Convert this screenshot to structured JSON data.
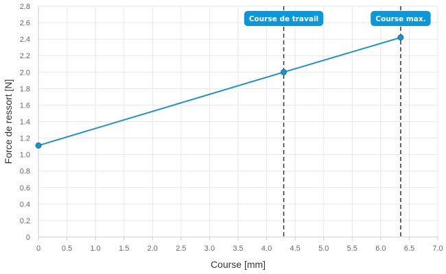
{
  "chart_data": {
    "type": "line",
    "title": "",
    "xlabel": "Course [mm]",
    "ylabel": "Force de ressort [N]",
    "xlim": [
      0,
      7
    ],
    "ylim": [
      0,
      2.8
    ],
    "x_ticks": [
      "0",
      "0.5",
      "1.0",
      "1.5",
      "2.0",
      "2.5",
      "3.0",
      "3.5",
      "4.0",
      "4.5",
      "5.0",
      "5.5",
      "6.0",
      "6.5",
      "7.0"
    ],
    "y_ticks": [
      "0",
      "0.2",
      "0.4",
      "0.6",
      "0.8",
      "1.0",
      "1.2",
      "1.4",
      "1.6",
      "1.8",
      "2.0",
      "2.2",
      "2.4",
      "2.6",
      "2.8"
    ],
    "grid": true,
    "series": [
      {
        "color": "#1a91d0",
        "points": [
          {
            "x": 0,
            "y": 1.11
          },
          {
            "x": 4.3,
            "y": 2.0
          },
          {
            "x": 6.35,
            "y": 2.42
          }
        ]
      }
    ],
    "annotations": [
      {
        "label": "Course de travail",
        "x": 4.3,
        "style": "dashed-vertical",
        "color": "#0d96d8"
      },
      {
        "label": "Course max.",
        "x": 6.35,
        "style": "dashed-vertical",
        "color": "#0d96d8"
      }
    ]
  }
}
